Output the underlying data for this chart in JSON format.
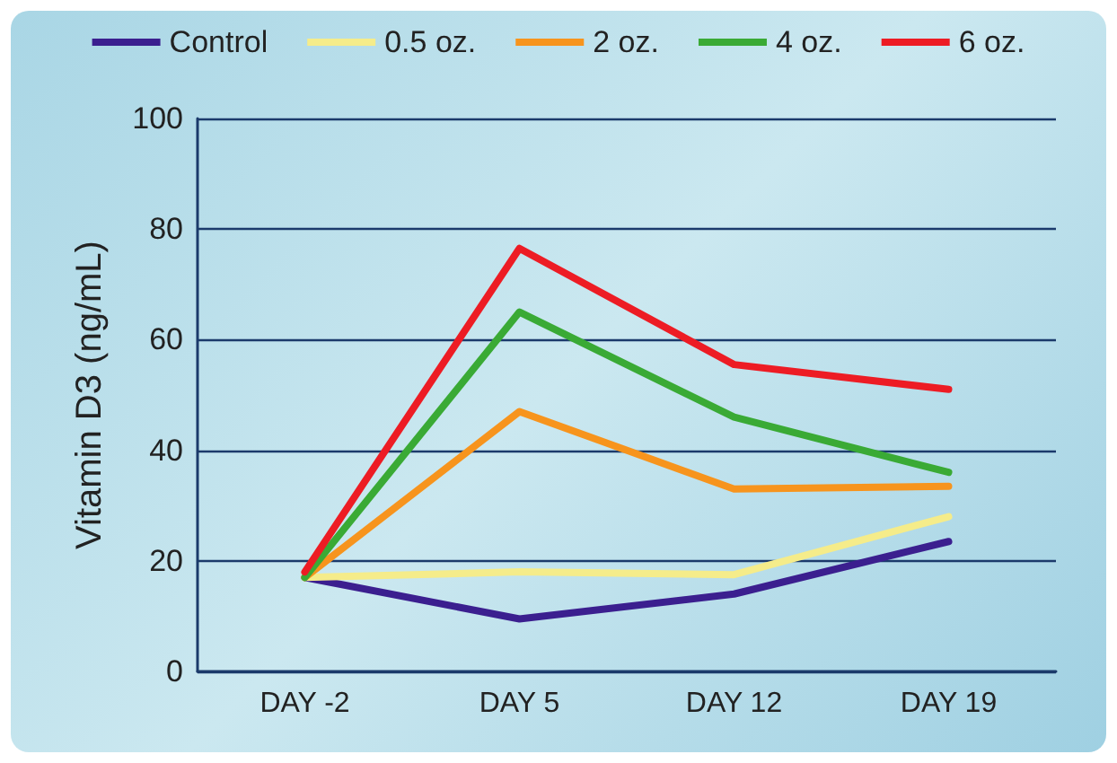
{
  "chart_data": {
    "type": "line",
    "ylabel": "Vitamin D3 (ng/mL)",
    "categories": [
      "DAY -2",
      "DAY 5",
      "DAY 12",
      "DAY 19"
    ],
    "series": [
      {
        "name": "Control",
        "color": "#3b1f8f",
        "values": [
          17,
          9.5,
          14,
          23.5
        ]
      },
      {
        "name": "0.5 oz.",
        "color": "#f5ec8a",
        "values": [
          17,
          18,
          17.5,
          28
        ]
      },
      {
        "name": "2 oz.",
        "color": "#f7941d",
        "values": [
          17,
          47,
          33,
          33.5
        ]
      },
      {
        "name": "4 oz.",
        "color": "#3aaa35",
        "values": [
          17,
          65,
          46,
          36
        ]
      },
      {
        "name": "6 oz.",
        "color": "#ed1c24",
        "values": [
          18,
          76.5,
          55.5,
          51
        ]
      }
    ],
    "ylim": [
      0,
      100
    ],
    "yticks": [
      0,
      20,
      40,
      60,
      80,
      100
    ],
    "grid": "y",
    "legend": "top",
    "marker": "none",
    "line_style": "solid"
  }
}
